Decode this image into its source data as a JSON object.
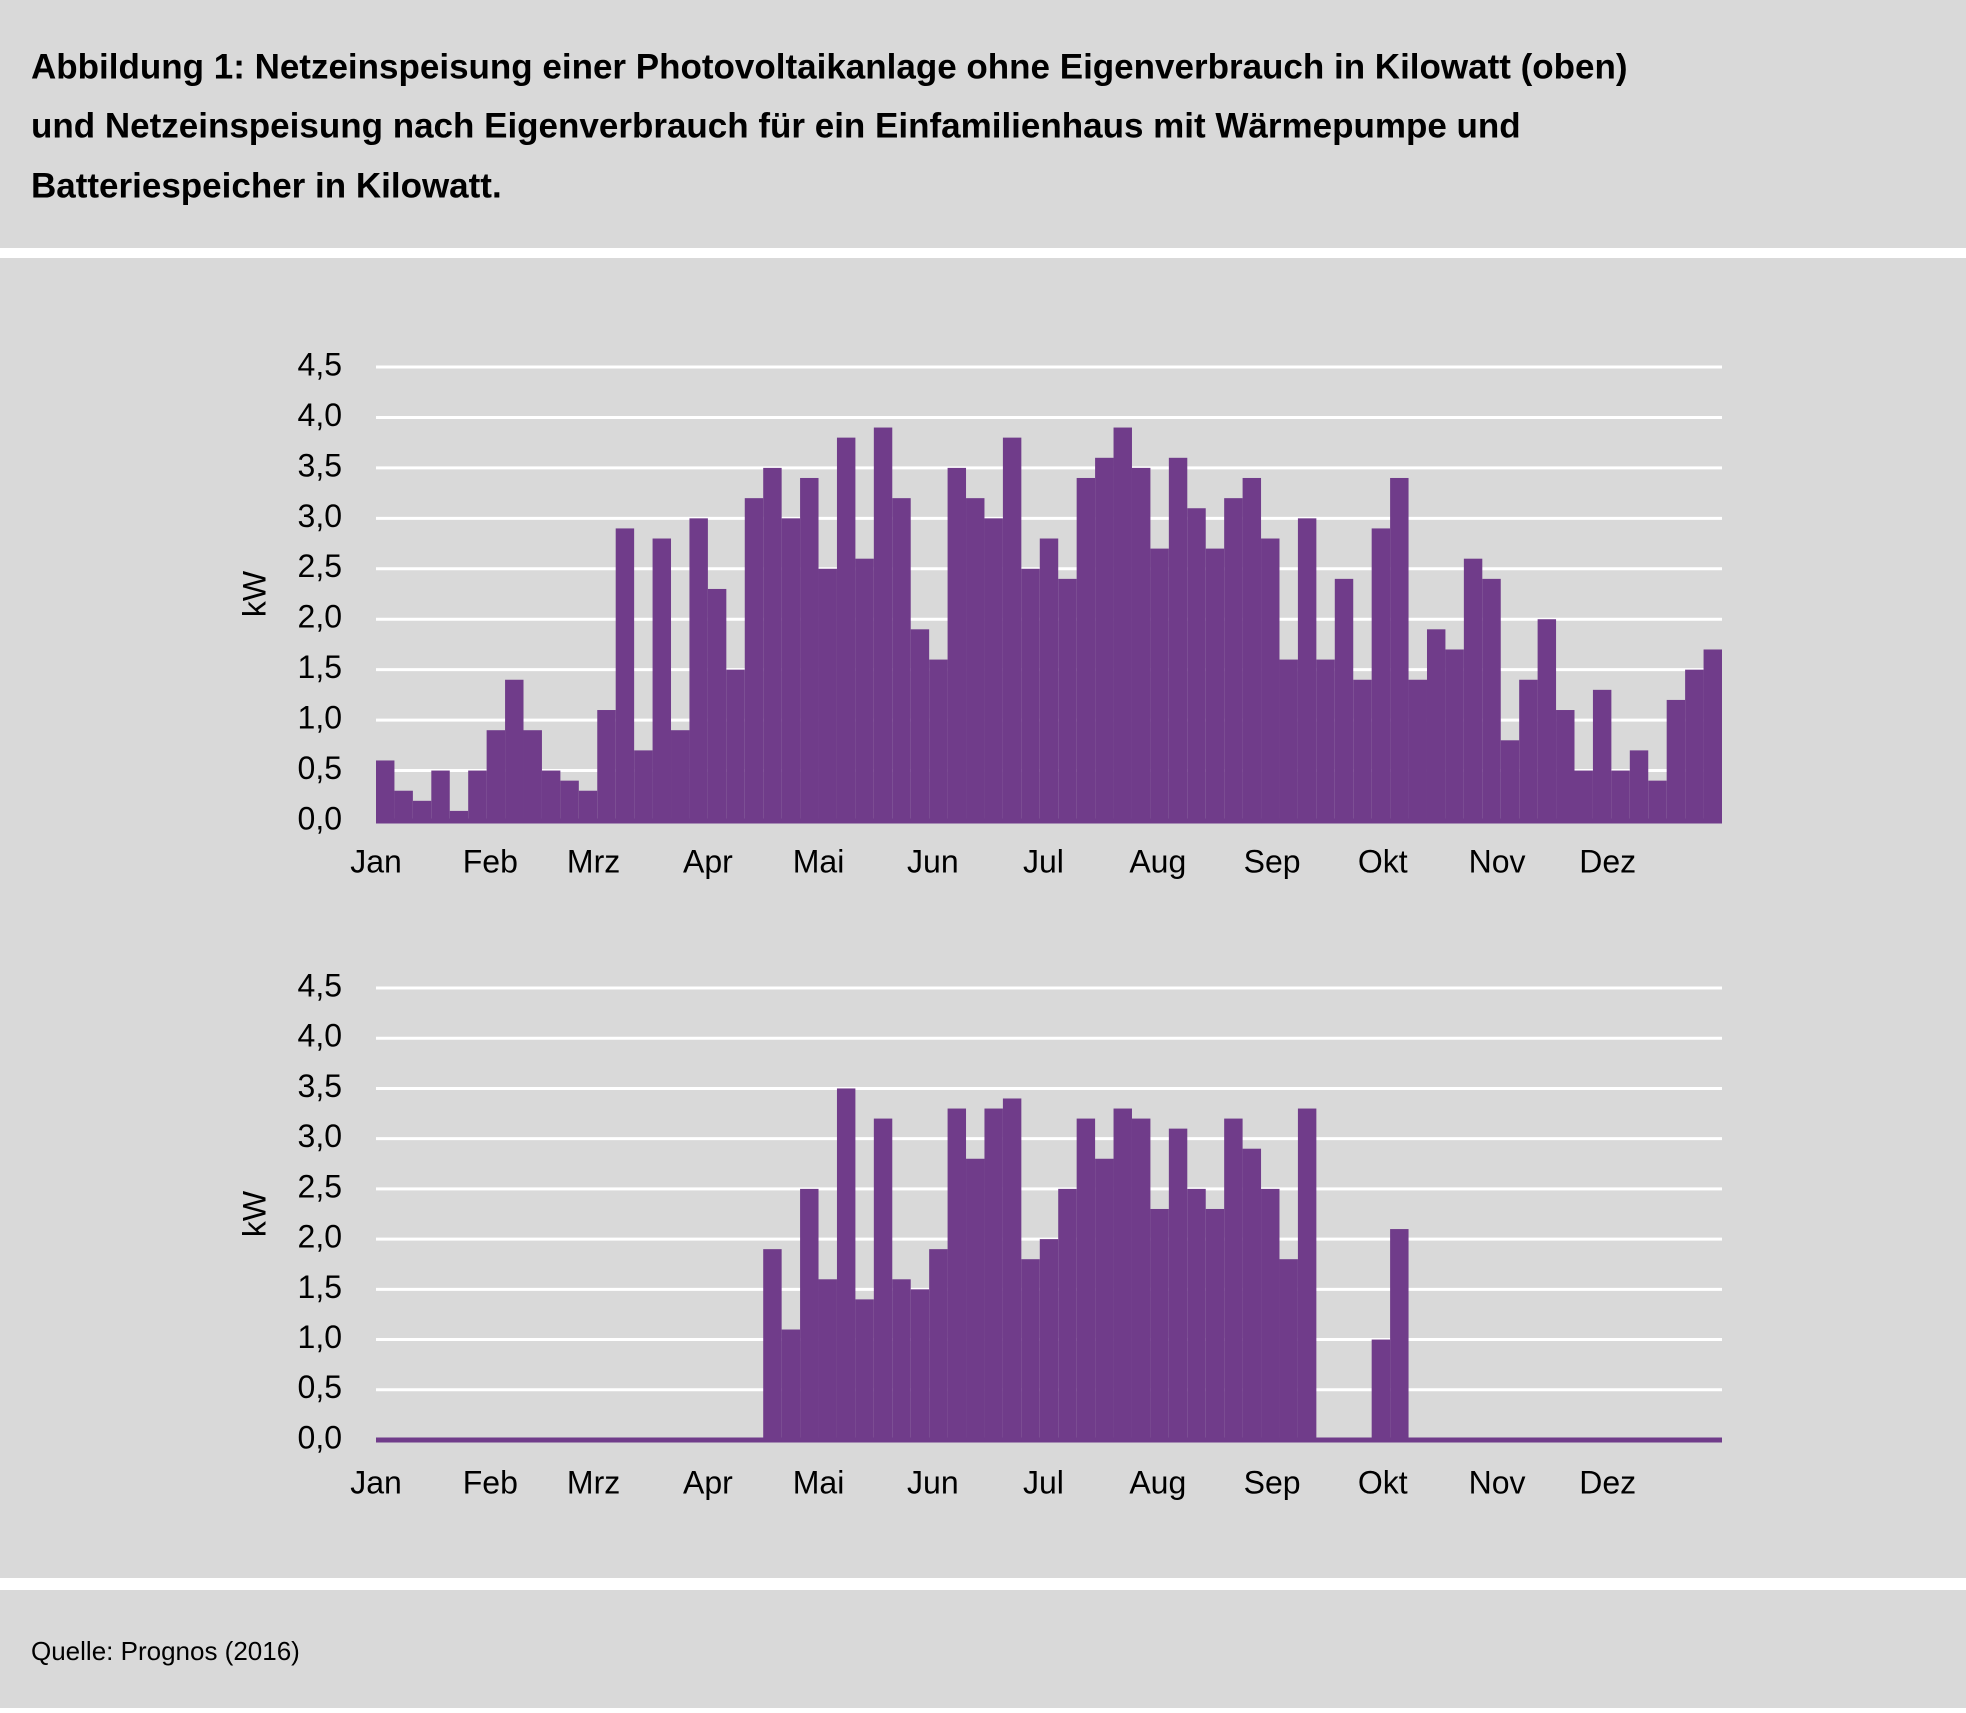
{
  "title": [
    "Abbildung 1: Netzeinspeisung einer Photovoltaikanlage ohne Eigenverbrauch in Kilowatt (oben)",
    "und Netzeinspeisung nach Eigenverbrauch für ein Einfamilienhaus mit Wärmepumpe und",
    "Batteriespeicher in Kilowatt."
  ],
  "source": "Quelle: Prognos (2016)",
  "chart_data": [
    {
      "type": "bar",
      "ylabel": "kW",
      "color": "#703c8a",
      "grid": true,
      "xlim": [
        0,
        365
      ],
      "ylim": [
        0,
        4.5
      ],
      "xticks": [
        {
          "value": 0,
          "label": "Jan"
        },
        {
          "value": 31,
          "label": "Feb"
        },
        {
          "value": 59,
          "label": "Mrz"
        },
        {
          "value": 90,
          "label": "Apr"
        },
        {
          "value": 120,
          "label": "Mai"
        },
        {
          "value": 151,
          "label": "Jun"
        },
        {
          "value": 181,
          "label": "Jul"
        },
        {
          "value": 212,
          "label": "Aug"
        },
        {
          "value": 243,
          "label": "Sep"
        },
        {
          "value": 273,
          "label": "Okt"
        },
        {
          "value": 304,
          "label": "Nov"
        },
        {
          "value": 334,
          "label": "Dez"
        }
      ],
      "yticks": [
        {
          "value": 0,
          "label": "0,0"
        },
        {
          "value": 0.5,
          "label": "0,5"
        },
        {
          "value": 1,
          "label": "1,0"
        },
        {
          "value": 1.5,
          "label": "1,5"
        },
        {
          "value": 2,
          "label": "2,0"
        },
        {
          "value": 2.5,
          "label": "2,5"
        },
        {
          "value": 3,
          "label": "3,0"
        },
        {
          "value": 3.5,
          "label": "3,5"
        },
        {
          "value": 4,
          "label": "4,0"
        },
        {
          "value": 4.5,
          "label": "4,5"
        }
      ],
      "x": [
        0,
        5,
        10,
        15,
        20,
        25,
        30,
        35,
        40,
        45,
        50,
        55,
        60,
        65,
        70,
        75,
        80,
        85,
        90,
        95,
        100,
        105,
        110,
        115,
        120,
        125,
        130,
        135,
        140,
        145,
        150,
        155,
        160,
        165,
        170,
        175,
        180,
        185,
        190,
        195,
        200,
        205,
        210,
        215,
        220,
        225,
        230,
        235,
        240,
        245,
        250,
        255,
        260,
        265,
        270,
        275,
        280,
        285,
        290,
        295,
        300,
        305,
        310,
        315,
        320,
        325,
        330,
        335,
        340,
        345,
        350,
        355,
        360
      ],
      "values": [
        0.6,
        0.3,
        0.2,
        0.5,
        0.1,
        0.5,
        0.9,
        1.4,
        0.9,
        0.5,
        0.4,
        0.3,
        1.1,
        2.9,
        0.7,
        2.8,
        0.9,
        3.0,
        2.3,
        1.5,
        3.2,
        3.5,
        3.0,
        3.4,
        2.5,
        3.8,
        2.6,
        3.9,
        3.2,
        1.9,
        1.6,
        3.5,
        3.2,
        3.0,
        3.8,
        2.5,
        2.8,
        2.4,
        3.4,
        3.6,
        3.9,
        3.5,
        2.7,
        3.6,
        3.1,
        2.7,
        3.2,
        3.4,
        2.8,
        1.6,
        3.0,
        1.6,
        2.4,
        1.4,
        2.9,
        3.4,
        1.4,
        1.9,
        1.7,
        2.6,
        2.4,
        0.8,
        1.4,
        2.0,
        1.1,
        0.5,
        1.3,
        0.5,
        0.7,
        0.4,
        1.2,
        1.5,
        1.7
      ]
    },
    {
      "type": "bar",
      "ylabel": "kW",
      "color": "#703c8a",
      "grid": true,
      "xlim": [
        0,
        365
      ],
      "ylim": [
        0,
        4.5
      ],
      "xticks": [
        {
          "value": 0,
          "label": "Jan"
        },
        {
          "value": 31,
          "label": "Feb"
        },
        {
          "value": 59,
          "label": "Mrz"
        },
        {
          "value": 90,
          "label": "Apr"
        },
        {
          "value": 120,
          "label": "Mai"
        },
        {
          "value": 151,
          "label": "Jun"
        },
        {
          "value": 181,
          "label": "Jul"
        },
        {
          "value": 212,
          "label": "Aug"
        },
        {
          "value": 243,
          "label": "Sep"
        },
        {
          "value": 273,
          "label": "Okt"
        },
        {
          "value": 304,
          "label": "Nov"
        },
        {
          "value": 334,
          "label": "Dez"
        }
      ],
      "yticks": [
        {
          "value": 0,
          "label": "0,0"
        },
        {
          "value": 0.5,
          "label": "0,5"
        },
        {
          "value": 1,
          "label": "1,0"
        },
        {
          "value": 1.5,
          "label": "1,5"
        },
        {
          "value": 2,
          "label": "2,0"
        },
        {
          "value": 2.5,
          "label": "2,5"
        },
        {
          "value": 3,
          "label": "3,0"
        },
        {
          "value": 3.5,
          "label": "3,5"
        },
        {
          "value": 4,
          "label": "4,0"
        },
        {
          "value": 4.5,
          "label": "4,5"
        }
      ],
      "x": [
        0,
        5,
        10,
        15,
        20,
        25,
        30,
        35,
        40,
        45,
        50,
        55,
        60,
        65,
        70,
        75,
        80,
        85,
        90,
        95,
        100,
        105,
        110,
        115,
        120,
        125,
        130,
        135,
        140,
        145,
        150,
        155,
        160,
        165,
        170,
        175,
        180,
        185,
        190,
        195,
        200,
        205,
        210,
        215,
        220,
        225,
        230,
        235,
        240,
        245,
        250,
        255,
        260,
        265,
        270,
        275,
        280,
        285,
        290,
        295,
        300,
        305,
        310,
        315,
        320,
        325,
        330,
        335,
        340,
        345,
        350,
        355,
        360
      ],
      "values": [
        0,
        0,
        0,
        0,
        0,
        0,
        0,
        0,
        0,
        0,
        0,
        0,
        0,
        0,
        0,
        0,
        0,
        0,
        0,
        0,
        0,
        1.9,
        1.1,
        2.5,
        1.6,
        3.5,
        1.4,
        3.2,
        1.6,
        1.5,
        1.9,
        3.3,
        2.8,
        3.3,
        3.4,
        1.8,
        2.0,
        2.5,
        3.2,
        2.8,
        3.3,
        3.2,
        2.3,
        3.1,
        2.5,
        2.3,
        3.2,
        2.9,
        2.5,
        1.8,
        3.3,
        0,
        0,
        0,
        1.0,
        2.1,
        0,
        0,
        0,
        0,
        0,
        0,
        0,
        0,
        0,
        0,
        0,
        0,
        0,
        0,
        0,
        0,
        0
      ]
    }
  ]
}
